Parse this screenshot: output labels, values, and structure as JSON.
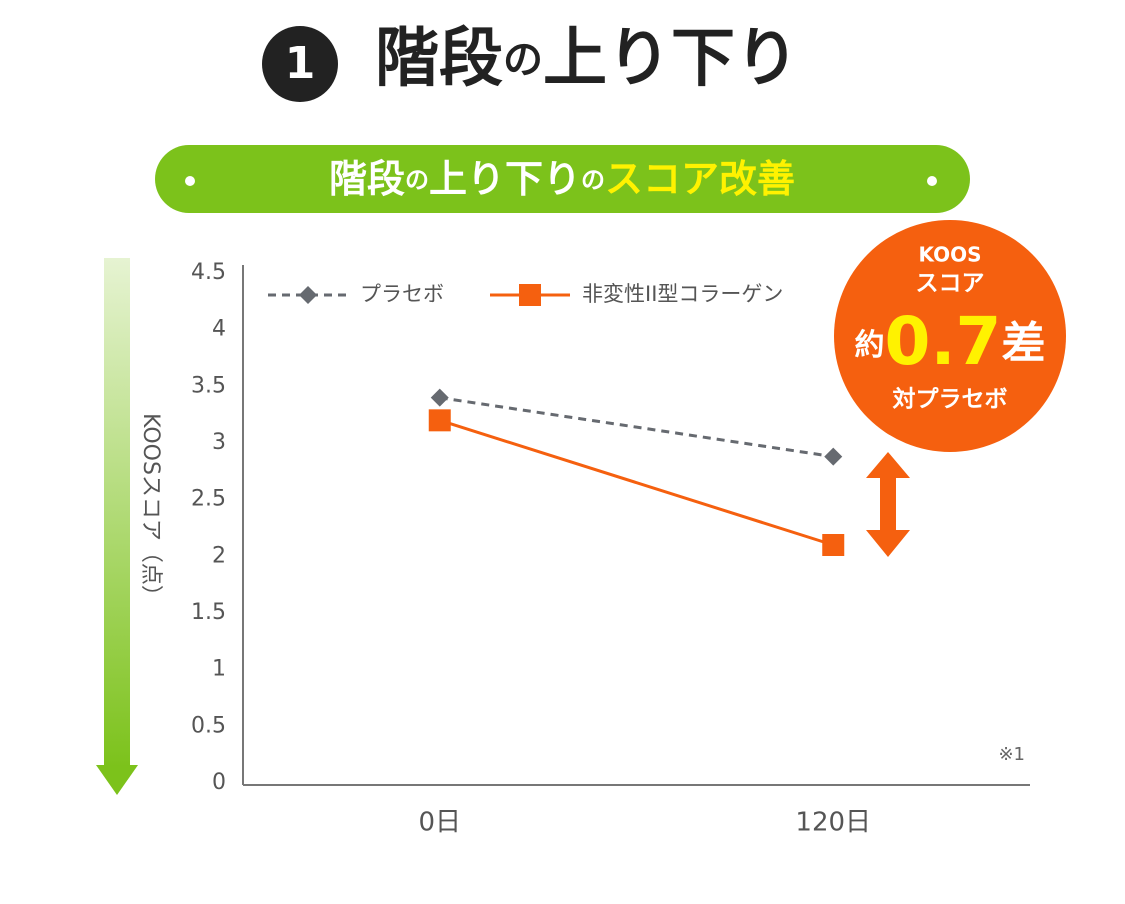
{
  "chart_data": {
    "type": "line",
    "number": "1",
    "title_parts": [
      "階段",
      "の",
      "上り下り"
    ],
    "banner_parts": [
      "階段",
      "の",
      "上り下り",
      "の",
      "スコア改善"
    ],
    "ylabel": "KOOSスコア（点）",
    "note": "※1",
    "badge": {
      "line1": "KOOS",
      "line2": "スコア",
      "prefix": "約",
      "value": "0.7",
      "suffix": "差",
      "line4": "対プラセボ"
    },
    "categories": [
      "0日",
      "120日"
    ],
    "series": [
      {
        "name": "プラセボ",
        "color": "#666a70",
        "dashed": true,
        "marker": "diamond",
        "values": [
          3.4,
          2.88
        ]
      },
      {
        "name": "非変性II型コラーゲン",
        "color": "#f5600f",
        "dashed": false,
        "marker": "square",
        "values": [
          3.2,
          2.1
        ]
      }
    ],
    "ylim": [
      0,
      4.5
    ],
    "yticks": [
      0,
      0.5,
      1,
      1.5,
      2,
      2.5,
      3,
      3.5,
      4,
      4.5
    ]
  }
}
